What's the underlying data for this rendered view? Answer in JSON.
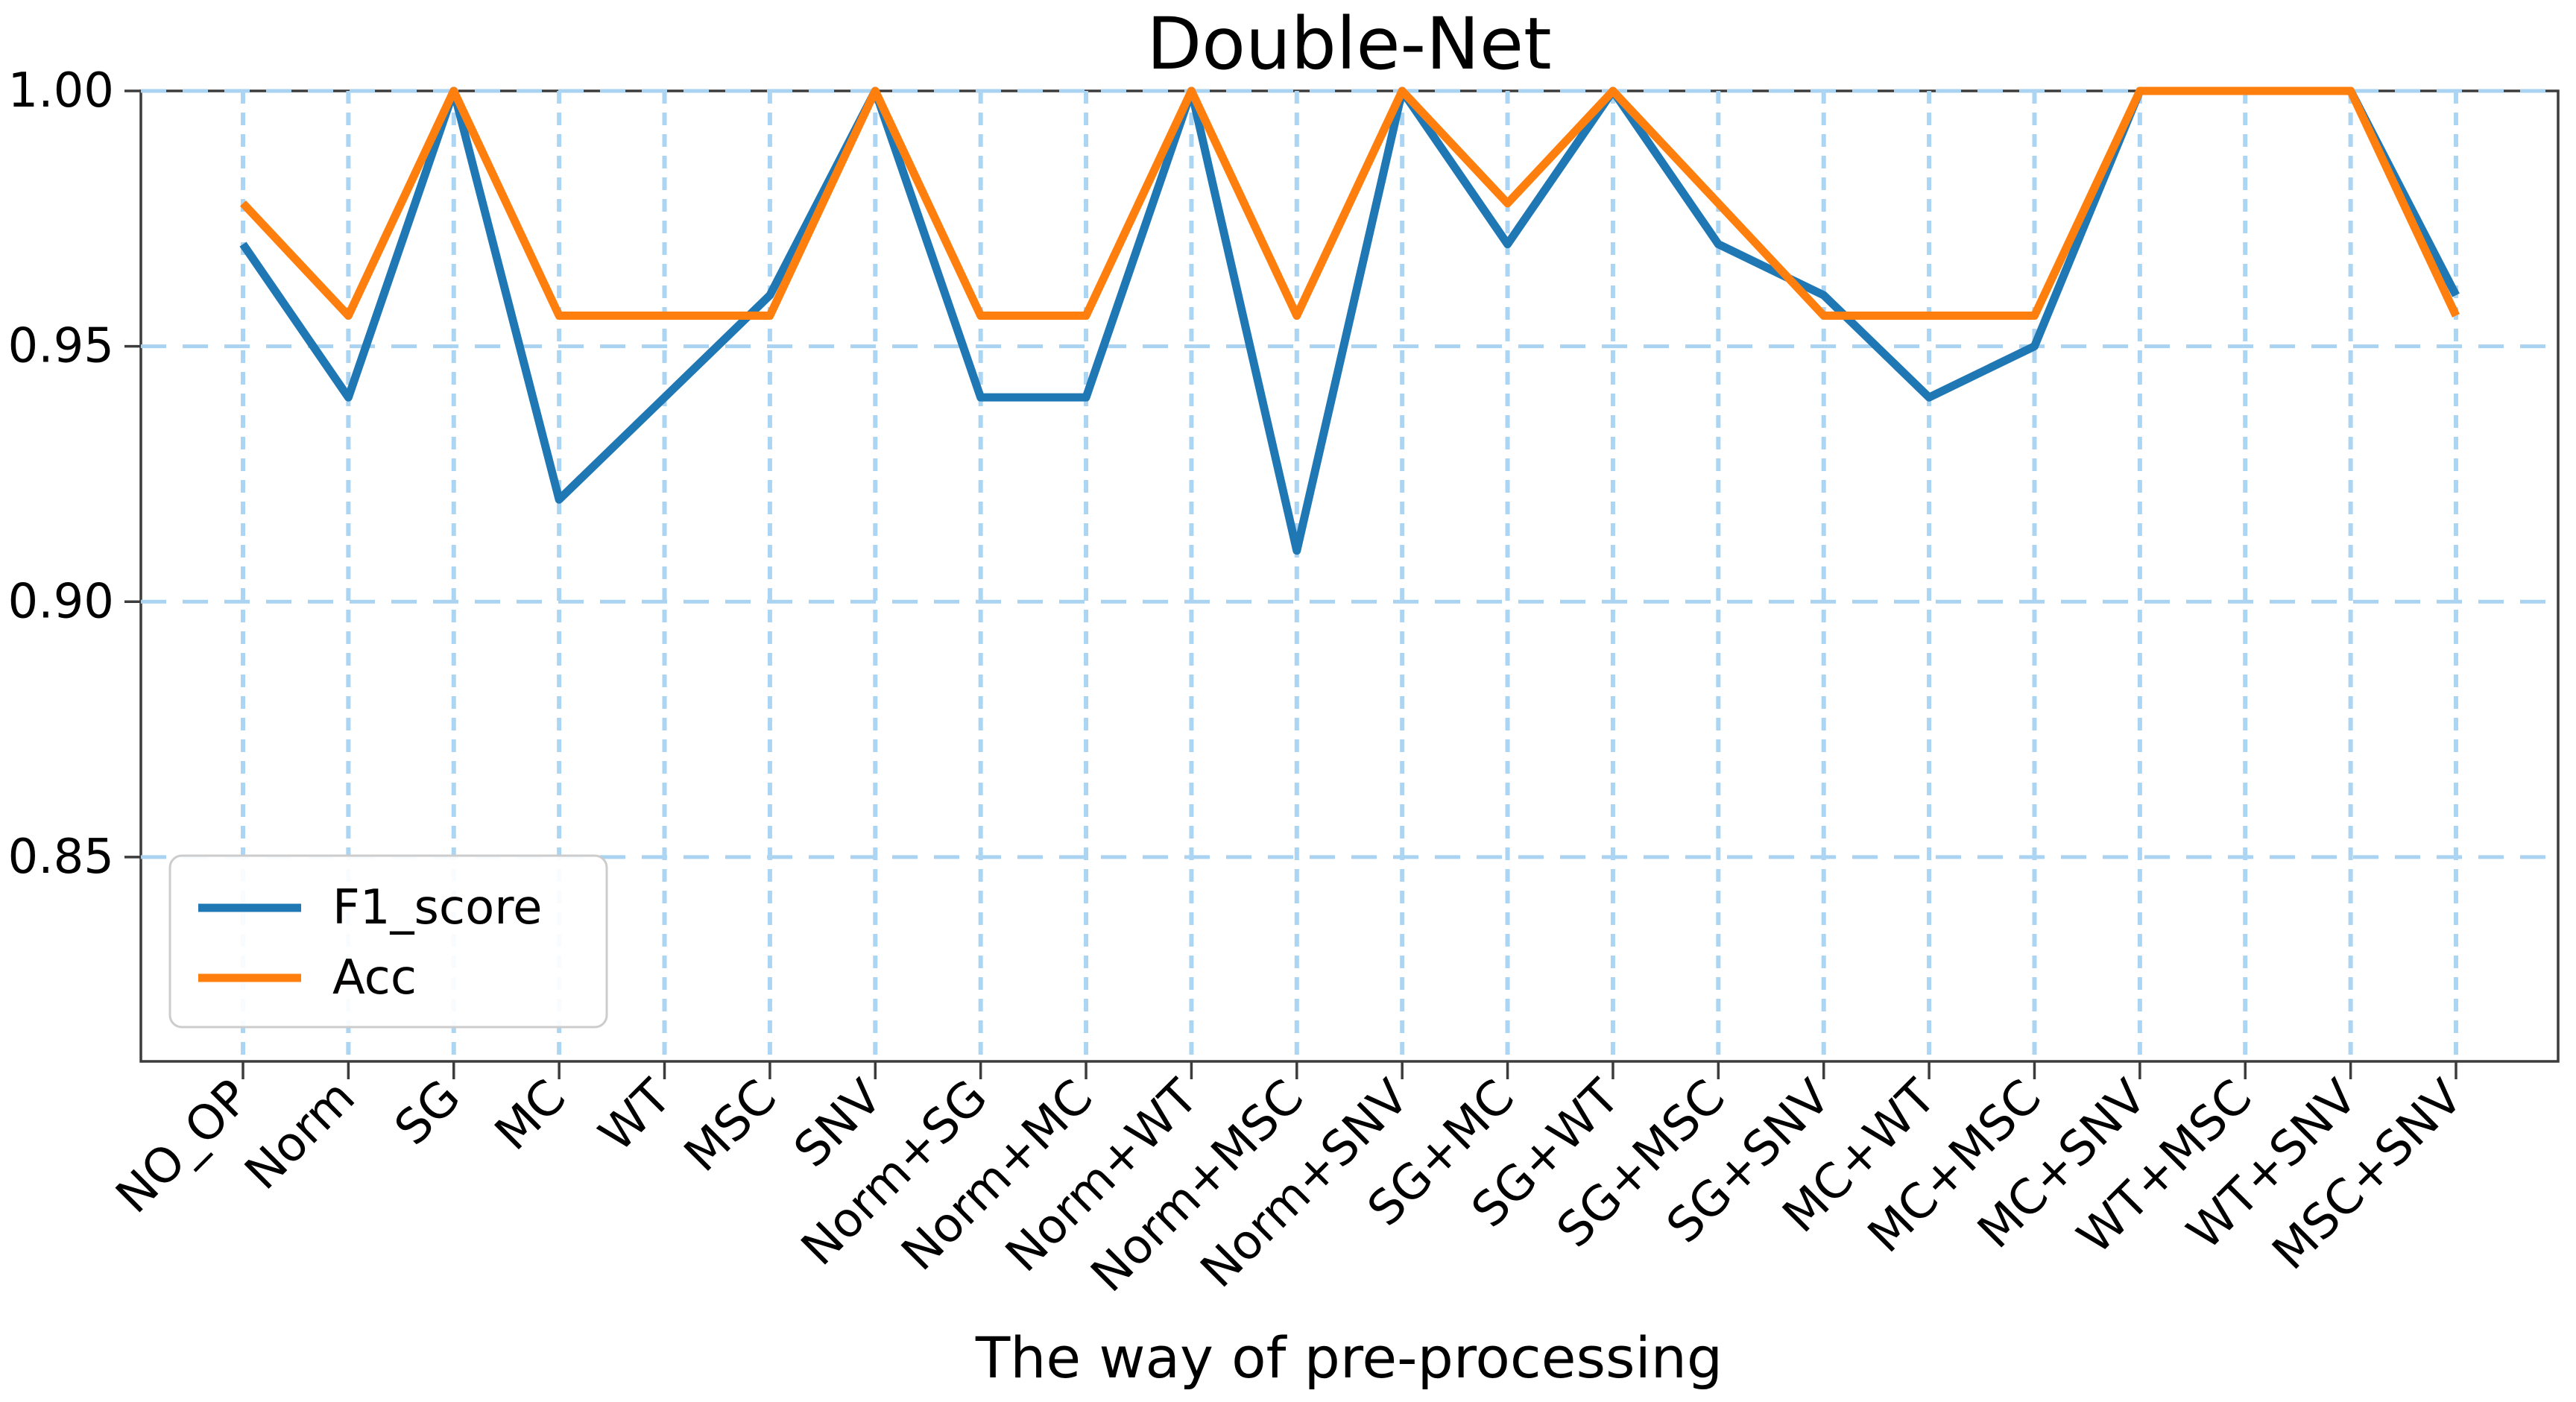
{
  "chart_data": {
    "type": "line",
    "title": "Double-Net",
    "xlabel": "The way of pre-processing",
    "ylabel": "",
    "categories": [
      "NO_OP",
      "Norm",
      "SG",
      "MC",
      "WT",
      "MSC",
      "SNV",
      "Norm+SG",
      "Norm+MC",
      "Norm+WT",
      "Norm+MSC",
      "Norm+SNV",
      "SG+MC",
      "SG+WT",
      "SG+MSC",
      "SG+SNV",
      "MC+WT",
      "MC+MSC",
      "MC+SNV",
      "WT+MSC",
      "WT+SNV",
      "MSC+SNV"
    ],
    "series": [
      {
        "name": "F1_score",
        "color": "#1f77b4",
        "values": [
          0.97,
          0.94,
          1.0,
          0.92,
          0.94,
          0.96,
          1.0,
          0.94,
          0.94,
          1.0,
          0.91,
          1.0,
          0.97,
          1.0,
          0.97,
          0.96,
          0.94,
          0.95,
          1.0,
          1.0,
          1.0,
          0.96
        ]
      },
      {
        "name": "Acc",
        "color": "#ff7f0e",
        "values": [
          0.978,
          0.956,
          1.0,
          0.956,
          0.956,
          0.956,
          1.0,
          0.956,
          0.956,
          1.0,
          0.956,
          1.0,
          0.978,
          1.0,
          0.978,
          0.956,
          0.956,
          0.956,
          1.0,
          1.0,
          1.0,
          0.956
        ]
      }
    ],
    "ylim": [
      0.81,
      1.0
    ],
    "yticks": [
      {
        "value": 1.0,
        "label": "1.00"
      },
      {
        "value": 0.95,
        "label": "0.95"
      },
      {
        "value": 0.9,
        "label": "0.90"
      },
      {
        "value": 0.85,
        "label": "0.85"
      }
    ],
    "grid": "dashed-lightblue",
    "grid_color": "#a9d3f0",
    "legend_position": "lower-left",
    "x_tick_rotation_deg": 45,
    "line_width": 11
  }
}
